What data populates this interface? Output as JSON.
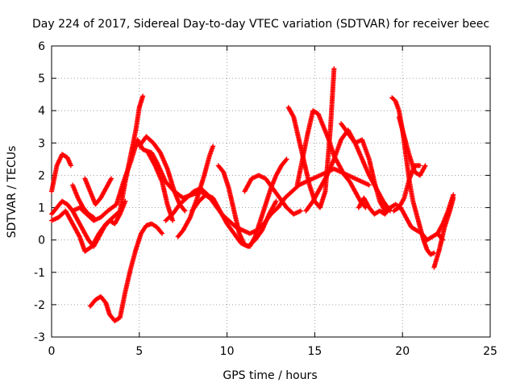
{
  "chart_data": {
    "type": "scatter",
    "title": "Day 224 of 2017, Sidereal Day-to-day VTEC variation (SDTVAR) for receiver beec",
    "xlabel": "GPS time / hours",
    "ylabel": "SDTVAR / TECUs",
    "xlim": [
      0,
      25
    ],
    "ylim": [
      -3,
      6
    ],
    "xticks": [
      "0",
      "5",
      "10",
      "15",
      "20",
      "25"
    ],
    "yticks": [
      "-3",
      "-2",
      "-1",
      "0",
      "1",
      "2",
      "3",
      "4",
      "5",
      "6"
    ],
    "grid": true,
    "marker": "+",
    "series_color": "#ff0000",
    "series": [
      {
        "x": [
          0.0,
          0.3,
          0.6,
          0.9,
          1.1
        ],
        "y": [
          1.5,
          2.3,
          2.65,
          2.55,
          2.3
        ]
      },
      {
        "x": [
          0.0,
          0.3,
          0.6,
          0.9,
          1.2,
          1.6,
          2.0,
          2.4,
          2.8,
          3.2,
          3.7,
          4.1,
          4.5,
          4.9,
          5.2,
          5.7,
          6.0,
          6.5,
          7.0,
          7.5,
          8.0,
          8.5,
          9.0
        ],
        "y": [
          0.8,
          1.0,
          1.2,
          1.1,
          0.9,
          1.0,
          0.8,
          0.6,
          0.7,
          0.9,
          1.1,
          1.8,
          2.4,
          3.1,
          2.8,
          2.7,
          2.4,
          1.8,
          1.5,
          1.3,
          1.4,
          1.5,
          1.3
        ]
      },
      {
        "x": [
          0.0,
          0.4,
          0.8,
          1.2,
          1.6,
          1.9,
          2.3,
          2.7,
          3.1,
          3.5,
          3.9,
          4.2,
          4.5,
          4.8,
          5.0,
          5.2
        ],
        "y": [
          0.6,
          0.7,
          0.9,
          0.5,
          0.1,
          -0.35,
          -0.2,
          0.2,
          0.5,
          0.7,
          0.9,
          1.8,
          2.6,
          3.4,
          4.1,
          4.45
        ]
      },
      {
        "x": [
          0.9,
          1.2,
          1.5,
          1.8,
          2.1,
          2.4,
          2.7,
          3.0,
          3.3,
          3.6,
          3.9,
          4.2
        ],
        "y": [
          1.1,
          0.9,
          0.6,
          0.3,
          0.0,
          -0.2,
          0.1,
          0.4,
          0.6,
          0.5,
          0.8,
          1.2
        ]
      },
      {
        "x": [
          1.2,
          1.5,
          1.8,
          2.1,
          2.4
        ],
        "y": [
          1.7,
          1.3,
          1.0,
          0.8,
          0.7
        ]
      },
      {
        "x": [
          1.9,
          2.2,
          2.5,
          2.8,
          3.1,
          3.4
        ],
        "y": [
          1.9,
          1.5,
          1.1,
          1.3,
          1.6,
          1.9
        ]
      },
      {
        "x": [
          2.2,
          2.5,
          2.8,
          3.1,
          3.3,
          3.6,
          3.9,
          4.2,
          4.5,
          4.8,
          5.1,
          5.4,
          5.7,
          6.0,
          6.3
        ],
        "y": [
          -2.05,
          -1.85,
          -1.75,
          -1.95,
          -2.3,
          -2.5,
          -2.4,
          -1.6,
          -0.9,
          -0.3,
          0.2,
          0.45,
          0.5,
          0.4,
          0.2
        ]
      },
      {
        "x": [
          5.0,
          5.4,
          5.8,
          6.2,
          6.6,
          7.0,
          7.3,
          7.6
        ],
        "y": [
          2.9,
          3.2,
          3.0,
          2.7,
          2.2,
          1.5,
          1.1,
          0.9
        ]
      },
      {
        "x": [
          5.5,
          5.9,
          6.3,
          6.6,
          6.9
        ],
        "y": [
          2.7,
          2.3,
          1.8,
          1.1,
          0.6
        ]
      },
      {
        "x": [
          6.5,
          6.9,
          7.3,
          7.7,
          8.1,
          8.5,
          8.9,
          9.3,
          9.7,
          10.1,
          10.5,
          10.9,
          11.3,
          11.7,
          12.1,
          12.5,
          12.9,
          13.3,
          13.7,
          14.1,
          14.5,
          14.9,
          15.3,
          15.7,
          16.1,
          16.5,
          16.9,
          17.3,
          17.7,
          18.1
        ],
        "y": [
          0.6,
          0.8,
          1.1,
          1.3,
          1.5,
          1.6,
          1.4,
          1.1,
          0.8,
          0.6,
          0.4,
          0.3,
          0.2,
          0.3,
          0.5,
          0.8,
          1.0,
          1.3,
          1.5,
          1.7,
          1.8,
          1.9,
          2.0,
          2.1,
          2.2,
          2.1,
          2.0,
          1.9,
          1.8,
          1.7
        ]
      },
      {
        "x": [
          7.2,
          7.5,
          7.9,
          8.3,
          8.7,
          9.0,
          9.2
        ],
        "y": [
          0.1,
          0.3,
          0.7,
          1.3,
          2.0,
          2.6,
          2.9
        ]
      },
      {
        "x": [
          8.0,
          8.4,
          8.8,
          9.2,
          9.6,
          10.0,
          10.4,
          10.8,
          11.2,
          11.6,
          12.0,
          12.4,
          12.8
        ],
        "y": [
          0.9,
          1.2,
          1.4,
          1.3,
          0.9,
          0.5,
          0.2,
          -0.1,
          -0.2,
          0.0,
          0.3,
          0.8,
          1.2
        ]
      },
      {
        "x": [
          9.5,
          9.8,
          10.1,
          10.4,
          10.7,
          11.0,
          11.3,
          11.6,
          11.9,
          12.2,
          12.5,
          12.8,
          13.1,
          13.4
        ],
        "y": [
          2.3,
          2.1,
          1.6,
          0.9,
          0.2,
          -0.15,
          -0.2,
          0.1,
          0.6,
          1.1,
          1.6,
          2.0,
          2.3,
          2.5
        ]
      },
      {
        "x": [
          11.0,
          11.4,
          11.8,
          12.2,
          12.6,
          13.0,
          13.4,
          13.8,
          14.2
        ],
        "y": [
          1.5,
          1.9,
          2.0,
          1.9,
          1.6,
          1.3,
          1.0,
          0.8,
          0.9
        ]
      },
      {
        "x": [
          13.5,
          13.8,
          14.1,
          14.4,
          14.7,
          15.0,
          15.3,
          15.6,
          15.9,
          16.1
        ],
        "y": [
          4.1,
          3.8,
          3.1,
          2.4,
          1.7,
          1.2,
          1.0,
          1.5,
          3.5,
          5.3
        ]
      },
      {
        "x": [
          14.0,
          14.3,
          14.6,
          14.9,
          15.2,
          15.5,
          15.8,
          16.1,
          16.4,
          16.7,
          17.0,
          17.3,
          17.6,
          17.9
        ],
        "y": [
          1.7,
          2.5,
          3.3,
          4.0,
          3.9,
          3.5,
          3.1,
          2.6,
          2.3,
          2.0,
          1.8,
          1.5,
          1.2,
          1.0
        ]
      },
      {
        "x": [
          14.5,
          14.9,
          15.3,
          15.7,
          16.1,
          16.5,
          16.9,
          17.3,
          17.7,
          18.1,
          18.5,
          18.9,
          19.3
        ],
        "y": [
          0.9,
          1.2,
          1.6,
          2.0,
          2.5,
          3.1,
          3.4,
          3.0,
          2.5,
          2.0,
          1.6,
          1.2,
          0.9
        ]
      },
      {
        "x": [
          16.5,
          16.9,
          17.3,
          17.7,
          18.1,
          18.4,
          18.7,
          19.0,
          19.3,
          19.6,
          19.9,
          20.2,
          20.5,
          20.8,
          21.1,
          21.4,
          21.7,
          22.0,
          22.3
        ],
        "y": [
          3.6,
          3.3,
          3.0,
          3.1,
          2.5,
          1.8,
          1.2,
          0.9,
          1.0,
          1.1,
          1.0,
          0.7,
          0.4,
          0.3,
          0.2,
          0.0,
          0.1,
          0.2,
          0.0
        ]
      },
      {
        "x": [
          17.5,
          17.8,
          18.1,
          18.4,
          18.7,
          19.0,
          19.3
        ],
        "y": [
          1.0,
          1.3,
          1.0,
          0.8,
          0.9,
          0.8,
          1.0
        ]
      },
      {
        "x": [
          19.4,
          19.6,
          19.8,
          20.0,
          20.2,
          20.4,
          20.6,
          20.8,
          21.0,
          21.2,
          21.4,
          21.6,
          21.8
        ],
        "y": [
          4.4,
          4.3,
          4.0,
          3.4,
          2.6,
          1.8,
          1.2,
          0.8,
          0.4,
          0.0,
          -0.3,
          -0.45,
          -0.4
        ]
      },
      {
        "x": [
          19.8,
          20.1,
          20.4,
          20.7,
          21.0,
          21.3
        ],
        "y": [
          3.8,
          3.2,
          2.6,
          2.1,
          2.0,
          2.3
        ]
      },
      {
        "x": [
          19.5,
          19.8,
          20.1,
          20.4,
          20.7,
          21.0
        ],
        "y": [
          0.9,
          1.0,
          1.3,
          1.9,
          2.3,
          2.3
        ]
      },
      {
        "x": [
          21.8,
          22.1,
          22.4,
          22.7,
          22.9
        ],
        "y": [
          -0.85,
          -0.3,
          0.4,
          0.9,
          1.3
        ]
      },
      {
        "x": [
          22.0,
          22.3,
          22.6,
          22.9
        ],
        "y": [
          0.2,
          0.5,
          0.9,
          1.4
        ]
      }
    ]
  }
}
